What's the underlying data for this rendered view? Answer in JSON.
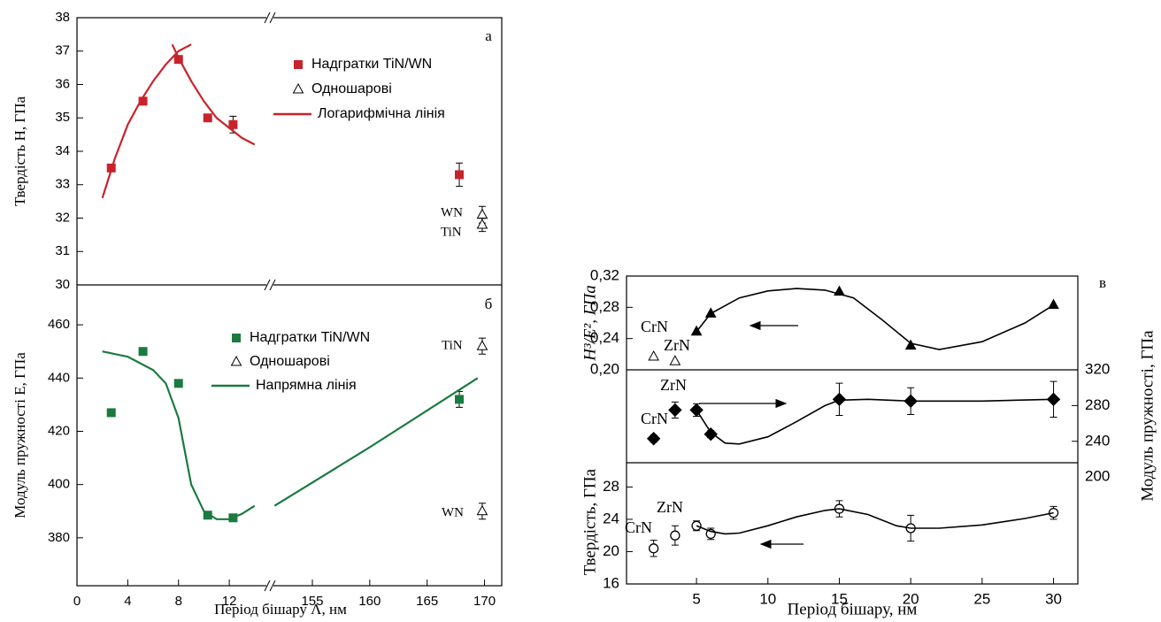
{
  "chart_data": [
    {
      "type": "scatter",
      "panel_label": "а",
      "ylabel": "Твердість H, ГПа",
      "xlim": [
        0,
        171.5
      ],
      "xbreak": [
        15.2,
        151.3
      ],
      "ylim": [
        30,
        38
      ],
      "yticks": [
        30,
        31,
        32,
        33,
        34,
        35,
        36,
        37,
        38
      ],
      "series": [
        {
          "name": "Надгратки TiN/WN",
          "marker": "square",
          "filled": true,
          "color": "#c8232c",
          "x": [
            2.7,
            5.2,
            8,
            10.3,
            12.3,
            167.8
          ],
          "values": [
            33.5,
            35.5,
            36.75,
            35,
            34.8,
            33.3
          ],
          "errors": [
            null,
            null,
            null,
            null,
            0.25,
            0.35
          ]
        },
        {
          "name": "Одношарові",
          "marker": "triangle",
          "filled": false,
          "color": "#000000",
          "x": [
            169.8,
            169.8
          ],
          "values": [
            32.1,
            31.8
          ],
          "errors": [
            0.25,
            0.2
          ]
        },
        {
          "name": "Логарифмічна лінія",
          "marker": "line",
          "color": "#c8232c",
          "x": [
            2,
            3,
            4,
            5,
            6,
            7,
            8,
            9,
            null,
            7.5,
            8,
            9,
            10,
            11,
            12,
            13,
            14
          ],
          "values": [
            32.6,
            33.8,
            34.8,
            35.5,
            36.1,
            36.6,
            37.0,
            37.2,
            null,
            37.2,
            36.8,
            36.1,
            35.5,
            35.0,
            34.7,
            34.4,
            34.2
          ]
        }
      ],
      "annotations": [
        "WN",
        "TiN"
      ]
    },
    {
      "type": "scatter",
      "panel_label": "б",
      "ylabel": "Модуль пружності E, ГПа",
      "xlabel": "Період бішару Λ, нм",
      "xlim": [
        0,
        171.5
      ],
      "xbreak": [
        15.2,
        151.3
      ],
      "xticks": [
        0,
        4,
        8,
        12,
        155,
        160,
        165,
        170
      ],
      "ylim": [
        362,
        475
      ],
      "yticks": [
        380,
        400,
        420,
        440,
        460
      ],
      "series": [
        {
          "name": "Надгратки TiN/WN",
          "marker": "square",
          "filled": true,
          "color": "#1a7a40",
          "x": [
            2.7,
            5.2,
            8,
            10.3,
            12.3,
            167.8
          ],
          "values": [
            427,
            450,
            438,
            388.5,
            387.5,
            432
          ],
          "errors": [
            null,
            null,
            null,
            null,
            null,
            3
          ]
        },
        {
          "name": "Одношарові",
          "marker": "triangle",
          "filled": false,
          "color": "#000000",
          "x": [
            169.8,
            169.8
          ],
          "values": [
            452,
            390
          ],
          "errors": [
            3,
            3
          ]
        },
        {
          "name": "Напрямна лінія",
          "marker": "line",
          "color": "#1a7a40",
          "x": [
            2,
            4,
            6,
            7,
            8,
            9,
            10,
            11,
            12,
            13,
            14,
            null,
            151.7,
            160,
            169.4
          ],
          "values": [
            450,
            448,
            443,
            438,
            425,
            400,
            390,
            387,
            387,
            389,
            392,
            null,
            392,
            414,
            440
          ]
        }
      ],
      "annotations": [
        "TiN",
        "WN"
      ]
    },
    {
      "type": "scatter",
      "panel_label": "в",
      "ylabel": "H³/E², ГПа",
      "xlim": [
        0.1,
        31.7
      ],
      "ylim": [
        0.2,
        0.32
      ],
      "yticks": [
        {
          "value": 0.2,
          "label": "0,20"
        },
        {
          "value": 0.24,
          "label": "0,24"
        },
        {
          "value": 0.28,
          "label": "0,28"
        },
        {
          "value": 0.32,
          "label": "0,32"
        }
      ],
      "series": [
        {
          "marker": "triangle",
          "filled": false,
          "color": "#000000",
          "x": [
            2,
            3.5
          ],
          "values": [
            0.217,
            0.211
          ]
        },
        {
          "marker": "triangle",
          "filled": true,
          "color": "#000000",
          "x": [
            5,
            6,
            15,
            20,
            30
          ],
          "values": [
            0.249,
            0.272,
            0.3,
            0.231,
            0.283
          ]
        },
        {
          "marker": "line",
          "color": "#000000",
          "x": [
            5,
            6,
            8,
            10,
            12,
            14,
            16,
            18,
            20,
            22,
            25,
            28,
            30
          ],
          "values": [
            0.249,
            0.272,
            0.292,
            0.301,
            0.304,
            0.302,
            0.292,
            0.264,
            0.234,
            0.226,
            0.236,
            0.26,
            0.283
          ]
        }
      ],
      "annotations": [
        "CrN",
        "ZrN"
      ]
    },
    {
      "type": "scatter",
      "y2label": "Модуль пружності, ГПа",
      "xlim": [
        0.1,
        31.7
      ],
      "y2lim": [
        216,
        320
      ],
      "y2ticks": [
        200,
        240,
        280,
        320
      ],
      "series": [
        {
          "marker": "diamond",
          "filled": true,
          "color": "#000000",
          "axis": "y2",
          "x": [
            2,
            3.5,
            5,
            6,
            15,
            20,
            30
          ],
          "values": [
            243,
            275,
            275,
            248,
            287,
            285,
            287
          ],
          "errors": [
            4,
            9,
            7,
            4,
            18,
            15,
            20
          ]
        },
        {
          "marker": "line",
          "color": "#000000",
          "axis": "y2",
          "x": [
            5,
            6,
            7,
            8,
            10,
            12,
            14,
            15,
            17,
            20,
            25,
            30
          ],
          "values": [
            275,
            250,
            238,
            237,
            245,
            262,
            280,
            286,
            287,
            285,
            285,
            287
          ]
        }
      ],
      "annotations": [
        "ZrN",
        "CrN"
      ]
    },
    {
      "type": "scatter",
      "ylabel": "Твердість, ГПа",
      "xlabel": "Період бішару, нм",
      "xlim": [
        0.1,
        31.7
      ],
      "xticks": [
        5,
        10,
        15,
        20,
        25,
        30
      ],
      "ylim": [
        16,
        31
      ],
      "yticks": [
        16,
        20,
        24,
        28
      ],
      "series": [
        {
          "marker": "circle",
          "filled": false,
          "color": "#000000",
          "x": [
            2,
            3.5,
            5,
            6,
            15,
            20,
            30
          ],
          "values": [
            20.4,
            22,
            23.2,
            22.2,
            25.3,
            22.9,
            24.8
          ],
          "errors": [
            1,
            1.2,
            0.6,
            0.7,
            1,
            1.6,
            0.8
          ]
        },
        {
          "marker": "line",
          "color": "#000000",
          "x": [
            5,
            6,
            7,
            8,
            10,
            12,
            14,
            15,
            17,
            19,
            20,
            22,
            25,
            28,
            30
          ],
          "values": [
            23.2,
            22.5,
            22.2,
            22.3,
            23.2,
            24.3,
            25.1,
            25.3,
            24.6,
            23.2,
            22.9,
            22.9,
            23.3,
            24.1,
            24.8
          ]
        }
      ],
      "annotations": [
        "ZrN",
        "CrN"
      ]
    }
  ]
}
